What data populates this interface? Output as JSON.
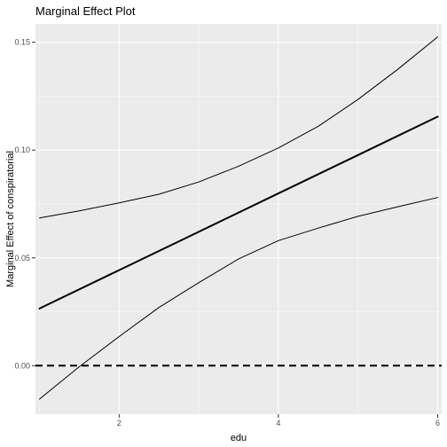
{
  "chart_data": {
    "type": "line",
    "title": "Marginal Effect Plot",
    "xlabel": "edu",
    "ylabel": "Marginal Effect of conspiratorial",
    "xlim": [
      0.95,
      6.05
    ],
    "ylim": [
      -0.0225,
      0.1585
    ],
    "x_ticks": [
      2,
      4,
      6
    ],
    "x_tick_labels": [
      "2",
      "4",
      "6"
    ],
    "y_ticks": [
      0.0,
      0.05,
      0.1,
      0.15
    ],
    "y_tick_labels": [
      "0.00",
      "0.05",
      "0.10",
      "0.15"
    ],
    "grid": true,
    "reference_line": {
      "y": 0,
      "style": "dashed"
    },
    "series": [
      {
        "role": "estimate",
        "x": [
          1,
          2,
          3,
          4,
          5,
          6
        ],
        "values": [
          0.0265,
          0.0443,
          0.0621,
          0.0799,
          0.0977,
          0.1155
        ]
      },
      {
        "role": "upper_ci",
        "x": [
          1,
          1.5,
          2,
          2.5,
          3,
          3.5,
          4,
          4.5,
          5,
          5.5,
          6
        ],
        "values": [
          0.0685,
          0.0718,
          0.0755,
          0.0795,
          0.0852,
          0.0925,
          0.101,
          0.111,
          0.1235,
          0.1375,
          0.1525
        ]
      },
      {
        "role": "lower_ci",
        "x": [
          1,
          1.5,
          2,
          2.5,
          3,
          3.5,
          4,
          4.5,
          5,
          5.5,
          6
        ],
        "values": [
          -0.0155,
          -0.0005,
          0.0135,
          0.027,
          0.0385,
          0.0495,
          0.058,
          0.0638,
          0.0693,
          0.0737,
          0.078
        ]
      }
    ]
  }
}
